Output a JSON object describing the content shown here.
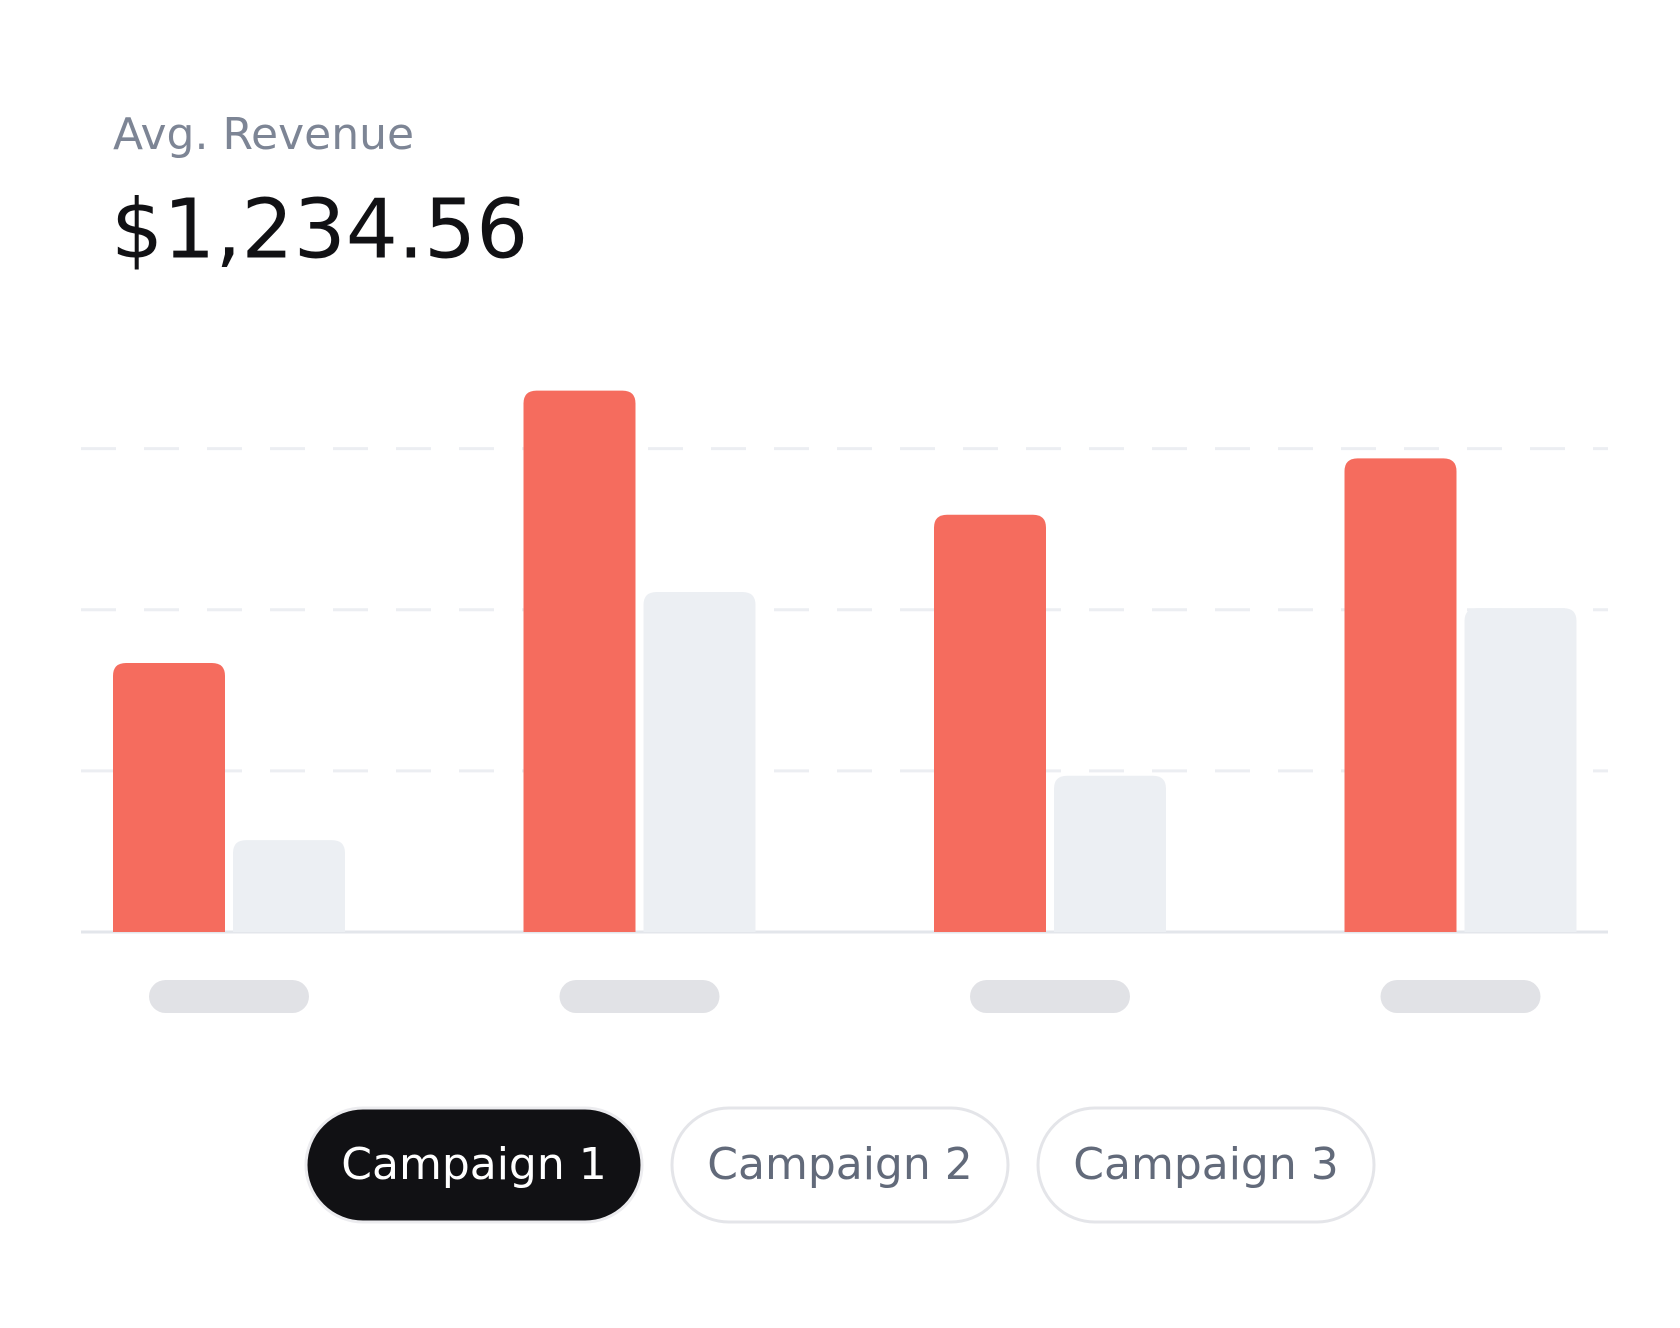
{
  "header": {
    "label": "Avg. Revenue",
    "value": "$1,234.56"
  },
  "chart_data": {
    "type": "bar",
    "categories": [
      null,
      null,
      null,
      null
    ],
    "series": [
      {
        "color": "#f56c5e",
        "values": [
          1.67,
          3.36,
          2.59,
          2.94
        ]
      },
      {
        "color": "#eceff3",
        "values": [
          0.57,
          2.11,
          0.97,
          2.01
        ]
      }
    ],
    "ylim": [
      0,
      3.6
    ],
    "yticks": [
      0,
      1,
      2,
      3
    ],
    "grid": true
  },
  "tabs": [
    "Campaign 1",
    "Campaign 2",
    "Campaign 3"
  ],
  "active_tab": 0
}
